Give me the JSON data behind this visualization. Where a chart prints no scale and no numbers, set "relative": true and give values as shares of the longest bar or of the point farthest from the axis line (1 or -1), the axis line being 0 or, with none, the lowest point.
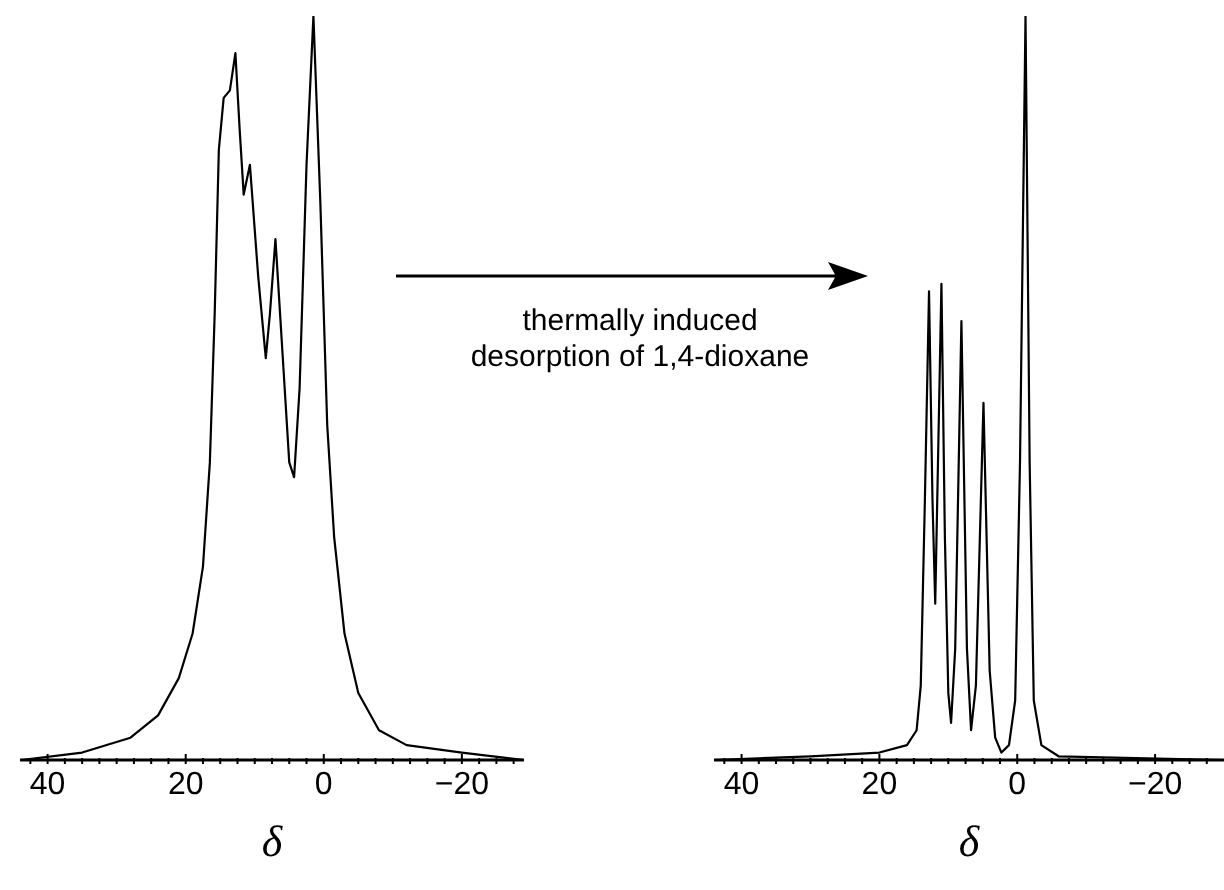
{
  "chart_data": [
    {
      "type": "line",
      "relative": true,
      "marker": "none",
      "xlabel": "δ",
      "xlim": [
        44,
        -29
      ],
      "xticks": [
        {
          "value": 42.5,
          "label": null
        },
        40,
        {
          "value": 37.5,
          "label": null
        },
        {
          "value": 35,
          "label": null
        },
        {
          "value": 32.5,
          "label": null
        },
        {
          "value": 30,
          "label": null
        },
        {
          "value": 27.5,
          "label": null
        },
        {
          "value": 25,
          "label": null
        },
        {
          "value": 22.5,
          "label": null
        },
        20,
        {
          "value": 17.5,
          "label": null
        },
        {
          "value": 15,
          "label": null
        },
        {
          "value": 12.5,
          "label": null
        },
        {
          "value": 10,
          "label": null
        },
        {
          "value": 7.5,
          "label": null
        },
        {
          "value": 5,
          "label": null
        },
        {
          "value": 2.5,
          "label": null
        },
        0,
        {
          "value": -2.5,
          "label": null
        },
        {
          "value": -5,
          "label": null
        },
        {
          "value": -7.5,
          "label": null
        },
        {
          "value": -10,
          "label": null
        },
        {
          "value": -12.5,
          "label": null
        },
        {
          "value": -15,
          "label": null
        },
        {
          "value": -17.5,
          "label": null
        },
        {
          "value": -20,
          "label": "−20"
        },
        {
          "value": -22.5,
          "label": null
        },
        {
          "value": -25,
          "label": null
        },
        {
          "value": -27.5,
          "label": null
        }
      ],
      "annotations": [
        "thermally induced\ndesorption of 1,4-dioxane"
      ],
      "series": [
        {
          "color": "#000000",
          "x": [
            43.8,
            35,
            28,
            24,
            21,
            19,
            17.5,
            16.5,
            15.8,
            15.2,
            14.5,
            13.6,
            12.8,
            12.2,
            11.6,
            10.7,
            9.5,
            8.4,
            7.8,
            7.0,
            6.0,
            5.0,
            4.3,
            3.5,
            2.5,
            1.5,
            0.5,
            -0.5,
            -1.5,
            -3,
            -5,
            -8,
            -12,
            -20,
            -29
          ],
          "values": [
            0,
            0.01,
            0.03,
            0.06,
            0.11,
            0.17,
            0.26,
            0.4,
            0.6,
            0.82,
            0.89,
            0.9,
            0.95,
            0.85,
            0.76,
            0.8,
            0.65,
            0.54,
            0.6,
            0.7,
            0.55,
            0.4,
            0.38,
            0.5,
            0.8,
            1,
            0.75,
            0.45,
            0.3,
            0.17,
            0.09,
            0.04,
            0.02,
            0.01,
            0
          ]
        }
      ]
    },
    {
      "type": "line",
      "relative": true,
      "marker": "none",
      "xlabel": "δ",
      "xlim": [
        44,
        -30
      ],
      "xticks": [
        {
          "value": 42.5,
          "label": null
        },
        40,
        {
          "value": 37.5,
          "label": null
        },
        {
          "value": 35,
          "label": null
        },
        {
          "value": 32.5,
          "label": null
        },
        {
          "value": 30,
          "label": null
        },
        {
          "value": 27.5,
          "label": null
        },
        {
          "value": 25,
          "label": null
        },
        {
          "value": 22.5,
          "label": null
        },
        20,
        {
          "value": 17.5,
          "label": null
        },
        {
          "value": 15,
          "label": null
        },
        {
          "value": 12.5,
          "label": null
        },
        {
          "value": 10,
          "label": null
        },
        {
          "value": 7.5,
          "label": null
        },
        {
          "value": 5,
          "label": null
        },
        {
          "value": 2.5,
          "label": null
        },
        0,
        {
          "value": -2.5,
          "label": null
        },
        {
          "value": -5,
          "label": null
        },
        {
          "value": -7.5,
          "label": null
        },
        {
          "value": -10,
          "label": null
        },
        {
          "value": -12.5,
          "label": null
        },
        {
          "value": -15,
          "label": null
        },
        {
          "value": -17.5,
          "label": null
        },
        {
          "value": -20,
          "label": "−20"
        },
        {
          "value": -22.5,
          "label": null
        },
        {
          "value": -25,
          "label": null
        },
        {
          "value": -27.5,
          "label": null
        }
      ],
      "series": [
        {
          "color": "#000000",
          "x": [
            44,
            30,
            20,
            16,
            14.6,
            14,
            13.4,
            12.8,
            12.3,
            11.9,
            11.5,
            11,
            10.5,
            10,
            9.6,
            9,
            8.1,
            7.3,
            6.7,
            6,
            4.9,
            4,
            3.2,
            2.3,
            1.2,
            0.3,
            -0.4,
            -1.2,
            -1.8,
            -2.4,
            -3.5,
            -6,
            -30
          ],
          "values": [
            0,
            0.005,
            0.01,
            0.02,
            0.04,
            0.1,
            0.35,
            0.63,
            0.35,
            0.21,
            0.4,
            0.64,
            0.3,
            0.09,
            0.05,
            0.15,
            0.59,
            0.15,
            0.04,
            0.1,
            0.48,
            0.12,
            0.03,
            0.01,
            0.02,
            0.08,
            0.4,
            1,
            0.4,
            0.08,
            0.02,
            0.005,
            0
          ]
        }
      ]
    }
  ]
}
